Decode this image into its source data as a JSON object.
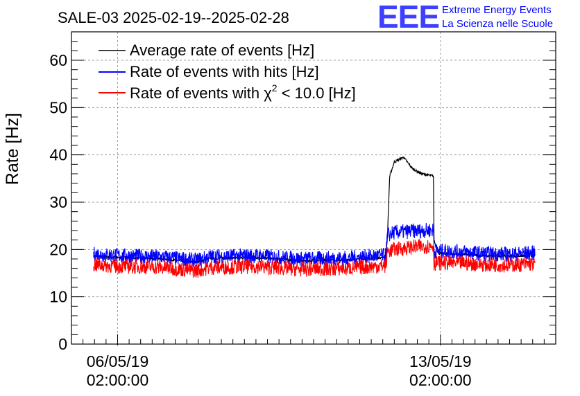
{
  "chart_data": {
    "type": "line",
    "title": "SALE-03 2025-02-19--2025-02-28",
    "xlabel": "",
    "ylabel": "Rate [Hz]",
    "ylim": [
      0,
      66
    ],
    "yticks": [
      0,
      10,
      20,
      30,
      40,
      50,
      60
    ],
    "xlim": [
      -1.0,
      9.5
    ],
    "x_units": "days",
    "xticks": [
      {
        "x": 0,
        "date": "06/05/19",
        "time": "02:00:00"
      },
      {
        "x": 7,
        "date": "13/05/19",
        "time": "02:00:00"
      }
    ],
    "grid": true,
    "legend_position": "top-left",
    "series": [
      {
        "name": "Average rate of events [Hz]",
        "label_main": "Average rate of events [Hz]",
        "color": "#000000",
        "x": [
          -0.52,
          0,
          1,
          1.7,
          2,
          3,
          4,
          5,
          5.82,
          5.85,
          5.9,
          6.0,
          6.2,
          6.4,
          6.6,
          6.85,
          6.86,
          6.95,
          7.5,
          8.0,
          8.5,
          9.05
        ],
        "y": [
          18.6,
          18.3,
          18.0,
          17.3,
          18.1,
          18.3,
          17.6,
          17.8,
          18.4,
          22.5,
          35.5,
          38.5,
          39.5,
          37.0,
          36.0,
          35.5,
          22.0,
          19.2,
          19.0,
          18.6,
          18.6,
          18.7
        ]
      },
      {
        "name": "Rate of events with hits [Hz]",
        "label_main": "Rate of events with hits [Hz]",
        "color": "#0000ff",
        "x": [
          -0.52,
          0,
          1,
          1.7,
          2,
          3,
          4,
          5,
          5.82,
          5.85,
          6.0,
          6.4,
          6.85,
          6.86,
          6.95,
          7.5,
          8.0,
          8.5,
          9.05
        ],
        "y": [
          19.0,
          18.7,
          18.4,
          17.7,
          18.5,
          18.7,
          18.0,
          18.2,
          18.8,
          23.0,
          23.6,
          23.9,
          24.1,
          19.5,
          19.7,
          19.5,
          19.1,
          19.0,
          19.3
        ]
      },
      {
        "name": "Rate of events with χ2 < 10.0 [Hz]",
        "label_main": "Rate of events with χ",
        "label_sup": "2",
        "label_rest": " < 10.0 [Hz]",
        "color": "#ff0000",
        "x": [
          -0.52,
          0,
          1,
          1.7,
          2,
          3,
          4,
          5,
          5.82,
          5.85,
          6.0,
          6.4,
          6.85,
          6.86,
          6.95,
          7.5,
          8.0,
          8.5,
          9.05
        ],
        "y": [
          16.8,
          16.5,
          16.2,
          15.5,
          16.2,
          16.4,
          15.8,
          16.0,
          16.6,
          19.6,
          20.0,
          20.5,
          20.8,
          17.0,
          17.2,
          17.1,
          16.8,
          16.7,
          17.0
        ]
      }
    ]
  },
  "logo": {
    "mark": "EEE",
    "line1": "Extreme Energy Events",
    "line2": "La Scienza nelle Scuole",
    "color": "#0000ff"
  }
}
